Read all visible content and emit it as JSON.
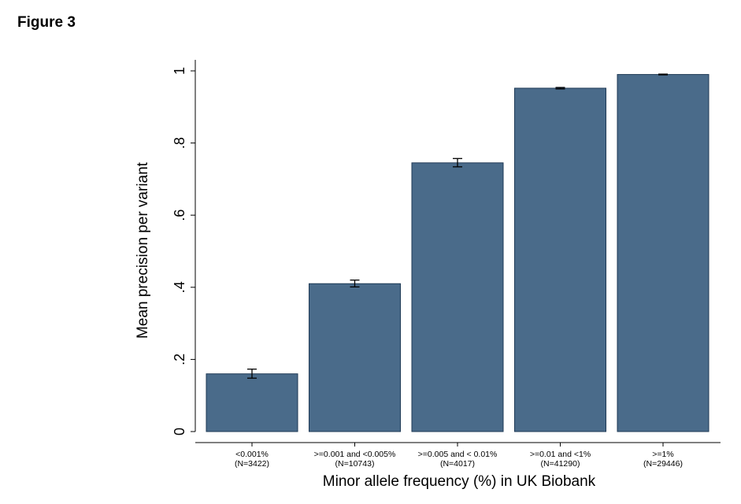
{
  "figure_label": "Figure 3",
  "chart_data": {
    "type": "bar",
    "title": "",
    "xlabel": "Minor allele frequency (%) in UK Biobank",
    "ylabel": "Mean precision per variant",
    "ylim": [
      0,
      1.0
    ],
    "yticks": [
      {
        "value": 0,
        "label": "0"
      },
      {
        "value": 0.2,
        "label": ".2"
      },
      {
        "value": 0.4,
        "label": ".4"
      },
      {
        "value": 0.6,
        "label": ".6"
      },
      {
        "value": 0.8,
        "label": ".8"
      },
      {
        "value": 1.0,
        "label": "1"
      }
    ],
    "categories": [
      {
        "label": "<0.001%",
        "n": "(N=3422)"
      },
      {
        "label": ">=0.001 and <0.005%",
        "n": "(N=10743)"
      },
      {
        "label": ">=0.005 and < 0.01%",
        "n": "(N=4017)"
      },
      {
        "label": ">=0.01 and <1%",
        "n": "(N=41290)"
      },
      {
        "label": ">=1%",
        "n": "(N=29446)"
      }
    ],
    "values": [
      0.16,
      0.41,
      0.745,
      0.952,
      0.99
    ],
    "error_low": [
      0.148,
      0.401,
      0.734,
      0.95,
      0.989
    ],
    "error_high": [
      0.173,
      0.42,
      0.757,
      0.954,
      0.991
    ],
    "bar_color": "#4a6b8a",
    "bar_edge_color": "#1f3a56",
    "grid": false,
    "legend": "none"
  }
}
